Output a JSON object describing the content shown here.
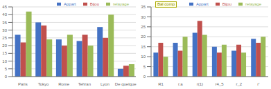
{
  "chart_data": [
    {
      "type": "bar",
      "categories": [
        "Paris",
        "Tokyo",
        "Rome",
        "Tehran",
        "Lyon",
        "De quelque\nchose"
      ],
      "series": [
        {
          "name": "Appart",
          "color": "#4472C4",
          "values": [
            27,
            35,
            24,
            23,
            32,
            5
          ]
        },
        {
          "name": "Bijou",
          "color": "#C0504D",
          "values": [
            22,
            33,
            20,
            27,
            25,
            7
          ]
        },
        {
          "name": "relayage",
          "color": "#9BBB59",
          "values": [
            42,
            24,
            27,
            20,
            40,
            8
          ]
        }
      ],
      "ylim": [
        0,
        45
      ],
      "yticks": [
        0,
        5,
        10,
        15,
        20,
        25,
        30,
        35,
        40,
        45
      ],
      "grid": true,
      "legend": "upper right"
    },
    {
      "type": "bar",
      "categories": [
        "R1",
        "r.a",
        "r(1)",
        "r4_5",
        "r_2",
        "r'"
      ],
      "series": [
        {
          "name": "Appart",
          "color": "#4472C4",
          "values": [
            12,
            17,
            22,
            15,
            13,
            19
          ]
        },
        {
          "name": "Bijou",
          "color": "#C0504D",
          "values": [
            17,
            13,
            28,
            12,
            16,
            17
          ]
        },
        {
          "name": "relayage",
          "color": "#9BBB59",
          "values": [
            10,
            20,
            21,
            16,
            12,
            20
          ]
        }
      ],
      "ylim": [
        0,
        35
      ],
      "yticks": [
        0,
        5,
        10,
        15,
        20,
        25,
        30,
        35
      ],
      "grid": true,
      "legend": "upper right",
      "annotation": "Bal comp"
    }
  ]
}
